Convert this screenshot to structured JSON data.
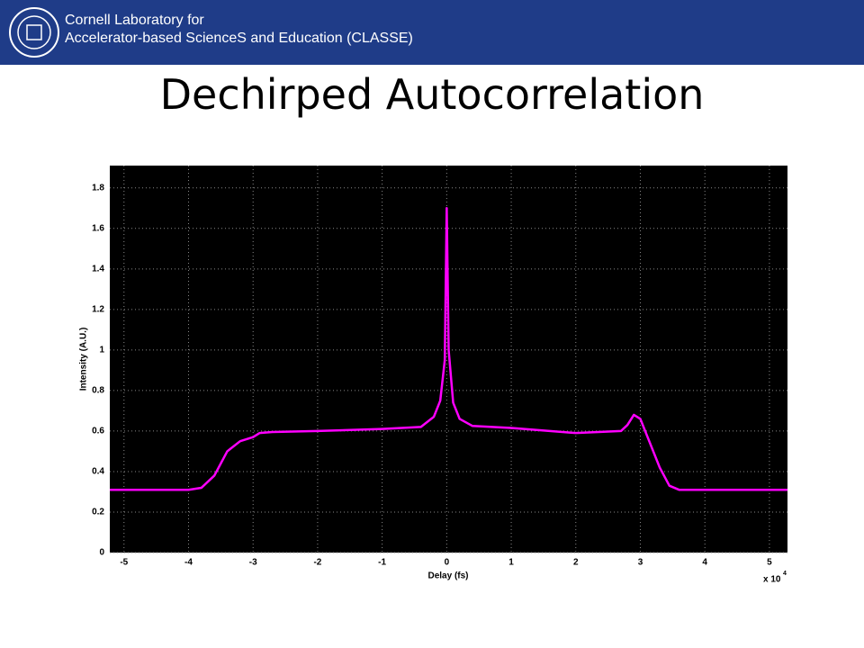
{
  "header": {
    "org_line1": "Cornell Laboratory for",
    "org_line2": "Accelerator-based ScienceS and Education (CLASSE)"
  },
  "chart_data": {
    "type": "line",
    "title": "Dechirped Autocorrelation",
    "x_label": "Delay (fs)",
    "y_label": "Intensity (A.U.)",
    "x_multiplier": {
      "base": "x 10",
      "exponent": "4"
    },
    "x": [
      -5.22,
      -4,
      -3.8,
      -3.6,
      -3.4,
      -3.2,
      -3,
      -2.9,
      -2.7,
      -2,
      -1,
      -0.4,
      -0.2,
      -0.1,
      -0.03,
      0,
      0.03,
      0.1,
      0.2,
      0.4,
      1,
      2,
      2.7,
      2.8,
      2.9,
      3,
      3.1,
      3.3,
      3.45,
      3.6,
      5.28
    ],
    "series": [
      {
        "name": "Autocorrelation",
        "color": "#ff00ff",
        "values": [
          0.31,
          0.31,
          0.32,
          0.38,
          0.5,
          0.55,
          0.57,
          0.59,
          0.595,
          0.6,
          0.61,
          0.62,
          0.67,
          0.75,
          0.95,
          1.7,
          1,
          0.74,
          0.66,
          0.625,
          0.615,
          0.59,
          0.6,
          0.63,
          0.68,
          0.66,
          0.58,
          0.42,
          0.33,
          0.31,
          0.31
        ]
      }
    ],
    "xlim": [
      -5.22,
      5.28
    ],
    "xticks": [
      -5,
      -4,
      -3,
      -2,
      -1,
      0,
      1,
      2,
      3,
      4,
      5
    ],
    "ylim": [
      0,
      1.91
    ],
    "yticks": [
      0,
      0.2,
      0.4,
      0.6,
      0.8,
      1,
      1.2,
      1.4,
      1.6,
      1.8
    ],
    "grid": true,
    "background": "#000000"
  }
}
